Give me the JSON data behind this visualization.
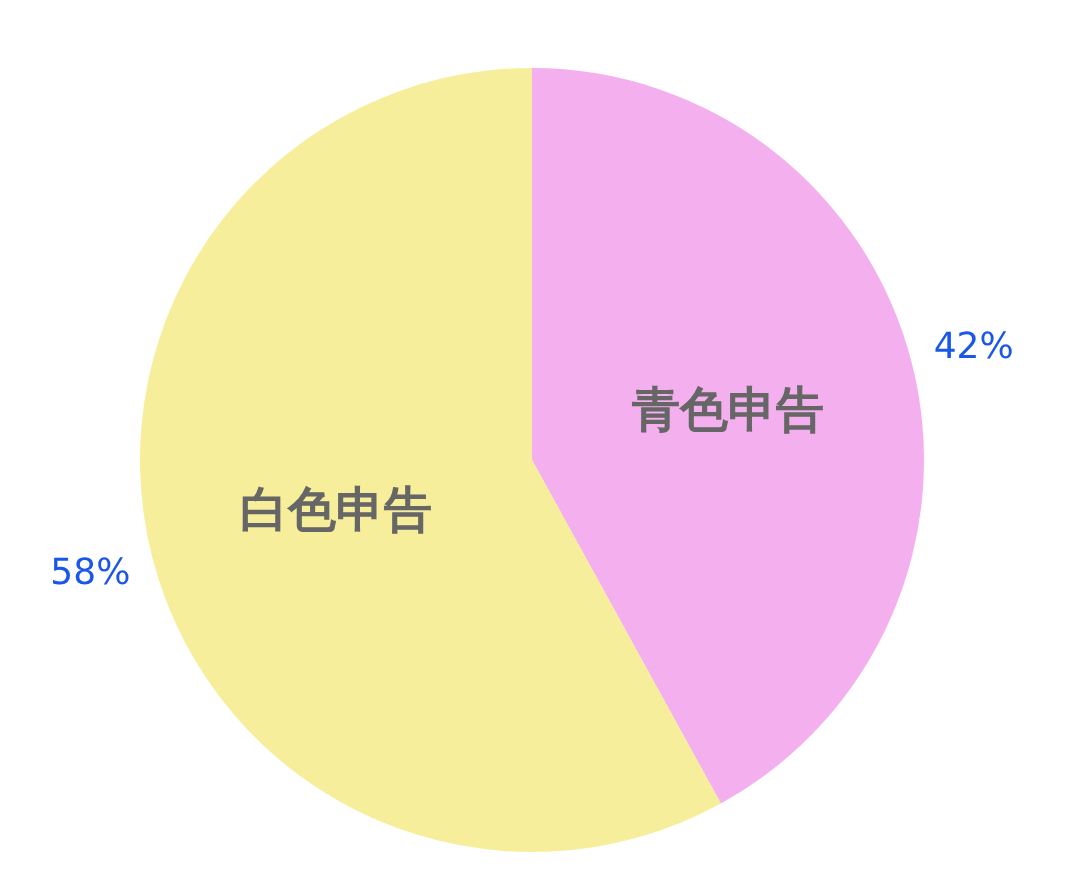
{
  "chart_data": {
    "type": "pie",
    "categories": [
      "青色申告",
      "白色申告"
    ],
    "values": [
      42,
      58
    ],
    "colors": [
      "#f4b0ee",
      "#f6ee9a"
    ],
    "value_labels": [
      "42%",
      "58%"
    ],
    "legend": false
  }
}
